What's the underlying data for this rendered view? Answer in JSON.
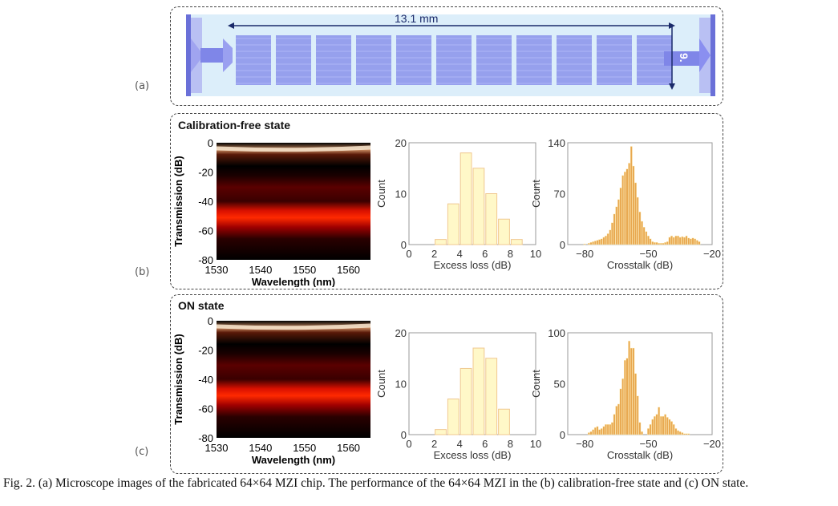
{
  "panel_a": {
    "label": "(a)",
    "length_label": "13.1 mm",
    "height_label": "9.",
    "chip_blocks": 11,
    "chip_color": "#7f86e8"
  },
  "panel_b": {
    "label": "(b)",
    "title": "Calibration-free state"
  },
  "panel_c": {
    "label": "(c)",
    "title": "ON state"
  },
  "caption": "Fig. 2. (a) Microscope images of the fabricated 64×64 MZI chip. The performance of the 64×64 MZI in the (b) calibration-free state and (c) ON state.",
  "chart_data": [
    {
      "id": "b-spectrum",
      "type": "heatmap",
      "xlabel": "Wavelength (nm)",
      "ylabel": "Transmission (dB)",
      "xlim": [
        1530,
        1565
      ],
      "ylim": [
        -80,
        0
      ],
      "xticks": [
        "1530",
        "1540",
        "1550",
        "1560"
      ],
      "yticks": [
        "0",
        "-20",
        "-40",
        "-60",
        "-80"
      ],
      "colormap": [
        "#000000",
        "#8b0000",
        "#ff2000",
        "#ffffff"
      ]
    },
    {
      "id": "b-excess",
      "type": "bar",
      "xlabel": "Excess loss (dB)",
      "ylabel": "Count",
      "xlim": [
        0,
        10
      ],
      "ylim": [
        0,
        20
      ],
      "xticks": [
        "0",
        "2",
        "4",
        "6",
        "8",
        "10"
      ],
      "yticks": [
        "0",
        "10",
        "20"
      ],
      "bins": [
        [
          2,
          3
        ],
        [
          3,
          4
        ],
        [
          4,
          5
        ],
        [
          5,
          6
        ],
        [
          6,
          7
        ],
        [
          7,
          8
        ],
        [
          8,
          9
        ]
      ],
      "values": [
        1,
        8,
        18,
        15,
        10,
        5,
        1
      ],
      "color": "#fff8c8"
    },
    {
      "id": "b-crosstalk",
      "type": "bar",
      "xlabel": "Crosstalk (dB)",
      "ylabel": "Count",
      "xlim": [
        -88,
        -20
      ],
      "ylim": [
        0,
        140
      ],
      "xticks": [
        "-80",
        "-50",
        "-20"
      ],
      "yticks": [
        "0",
        "70",
        "140"
      ],
      "x": [
        -80,
        -78,
        -77,
        -76,
        -75,
        -74,
        -73,
        -72,
        -71,
        -70,
        -69,
        -68,
        -67,
        -66,
        -65,
        -64,
        -63,
        -62,
        -61,
        -60,
        -59,
        -58,
        -57,
        -56,
        -55,
        -54,
        -53,
        -52,
        -51,
        -50,
        -49,
        -48,
        -47,
        -46,
        -45,
        -44,
        -43,
        -42,
        -41,
        -40,
        -39,
        -38,
        -37,
        -36,
        -35,
        -34,
        -33,
        -32,
        -31,
        -30,
        -29,
        -28,
        -27,
        -26
      ],
      "values": [
        1,
        2,
        3,
        4,
        5,
        6,
        7,
        8,
        10,
        12,
        15,
        20,
        30,
        42,
        52,
        62,
        78,
        95,
        100,
        104,
        112,
        135,
        108,
        85,
        65,
        45,
        32,
        24,
        18,
        12,
        8,
        4,
        3,
        3,
        2,
        2,
        2,
        3,
        4,
        10,
        12,
        10,
        12,
        12,
        10,
        11,
        10,
        12,
        9,
        8,
        9,
        8,
        6,
        4
      ],
      "color": "#e8a850"
    },
    {
      "id": "c-spectrum",
      "type": "heatmap",
      "xlabel": "Wavelength (nm)",
      "ylabel": "Transmission (dB)",
      "xlim": [
        1530,
        1565
      ],
      "ylim": [
        -80,
        0
      ],
      "xticks": [
        "1530",
        "1540",
        "1550",
        "1560"
      ],
      "yticks": [
        "0",
        "-20",
        "-40",
        "-60",
        "-80"
      ],
      "colormap": [
        "#000000",
        "#8b0000",
        "#ff2000",
        "#ffffff"
      ]
    },
    {
      "id": "c-excess",
      "type": "bar",
      "xlabel": "Excess loss (dB)",
      "ylabel": "Count",
      "xlim": [
        0,
        10
      ],
      "ylim": [
        0,
        20
      ],
      "xticks": [
        "0",
        "2",
        "4",
        "6",
        "8",
        "10"
      ],
      "yticks": [
        "0",
        "10",
        "20"
      ],
      "bins": [
        [
          2,
          3
        ],
        [
          3,
          4
        ],
        [
          4,
          5
        ],
        [
          5,
          6
        ],
        [
          6,
          7
        ],
        [
          7,
          8
        ]
      ],
      "values": [
        1,
        7,
        13,
        17,
        15,
        5
      ],
      "color": "#fff8c8"
    },
    {
      "id": "c-crosstalk",
      "type": "bar",
      "xlabel": "Crosstalk (dB)",
      "ylabel": "Count",
      "xlim": [
        -88,
        -20
      ],
      "ylim": [
        0,
        100
      ],
      "xticks": [
        "-80",
        "-50",
        "-20"
      ],
      "yticks": [
        "0",
        "50",
        "100"
      ],
      "x": [
        -78,
        -77,
        -76,
        -75,
        -74,
        -73,
        -72,
        -71,
        -70,
        -69,
        -68,
        -67,
        -66,
        -65,
        -64,
        -63,
        -62,
        -61,
        -60,
        -59,
        -58,
        -57,
        -56,
        -55,
        -54,
        -53,
        -52,
        -51,
        -50,
        -49,
        -48,
        -47,
        -46,
        -45,
        -44,
        -43,
        -42,
        -41,
        -40,
        -39,
        -38,
        -37,
        -36,
        -35,
        -34,
        -33,
        -32,
        -31
      ],
      "values": [
        2,
        3,
        5,
        7,
        8,
        5,
        6,
        8,
        10,
        10,
        10,
        12,
        20,
        28,
        30,
        45,
        55,
        73,
        75,
        92,
        85,
        85,
        60,
        38,
        12,
        3,
        0,
        0,
        6,
        10,
        15,
        18,
        20,
        27,
        18,
        18,
        20,
        17,
        15,
        13,
        10,
        6,
        4,
        3,
        2,
        1,
        1,
        1
      ],
      "color": "#e8a850"
    }
  ]
}
